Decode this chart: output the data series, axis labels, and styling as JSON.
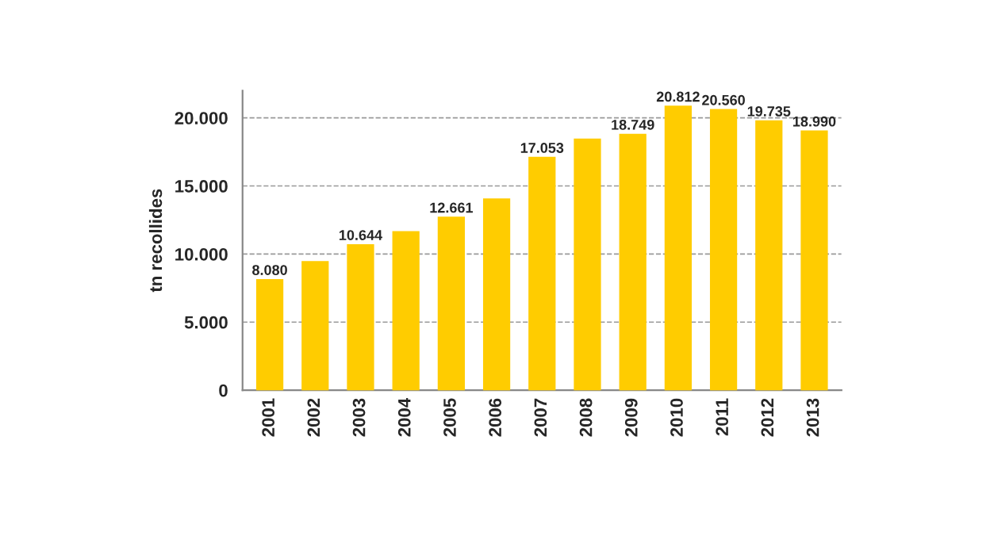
{
  "chart_data": {
    "type": "bar",
    "ylabel": "tn recollides",
    "categories": [
      "2001",
      "2002",
      "2003",
      "2004",
      "2005",
      "2006",
      "2007",
      "2008",
      "2009",
      "2010",
      "2011",
      "2012",
      "2013"
    ],
    "values": [
      8080,
      9400,
      10644,
      11600,
      12661,
      14000,
      17053,
      18400,
      18749,
      20812,
      20560,
      19735,
      18990
    ],
    "value_labels": [
      "8.080",
      null,
      "10.644",
      null,
      "12.661",
      null,
      "17.053",
      null,
      "18.749",
      "20.812",
      "20.560",
      "19.735",
      "18.990"
    ],
    "color": "#ffcc00",
    "ylim": [
      0,
      22000
    ],
    "yticks": [
      0,
      {
        "value": 5000,
        "label": "5.000"
      },
      {
        "value": 10000,
        "label": "10.000"
      },
      {
        "value": 15000,
        "label": "15.000"
      },
      {
        "value": 20000,
        "label": "20.000"
      }
    ],
    "grid": "y"
  }
}
